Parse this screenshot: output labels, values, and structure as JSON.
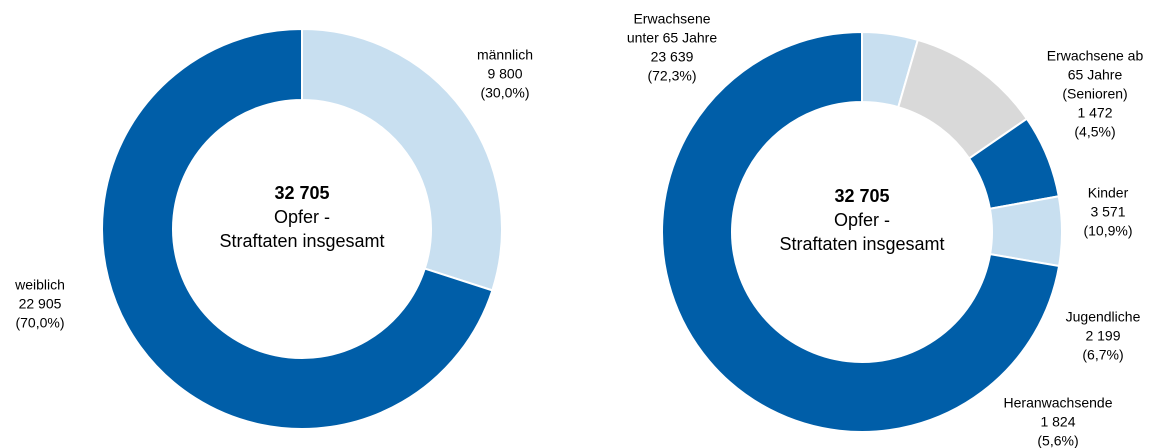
{
  "chart_data": [
    {
      "type": "donut",
      "center_label": [
        "32 705",
        "Opfer -",
        "Straftaten insgesamt"
      ],
      "categories": [
        [
          "männlich"
        ],
        [
          "weiblich"
        ]
      ],
      "values": [
        9800,
        22905
      ],
      "value_labels": [
        "9 800",
        "22 905"
      ],
      "percent_labels": [
        "(30,0%)",
        "(70,0%)"
      ],
      "colors": [
        "#c8dff0",
        "#005ea8"
      ]
    },
    {
      "type": "donut",
      "center_label": [
        "32 705",
        "Opfer -",
        "Straftaten insgesamt"
      ],
      "categories": [
        [
          "Erwachsene ab",
          "65 Jahre",
          "(Senioren)"
        ],
        [
          "Kinder"
        ],
        [
          "Jugendliche"
        ],
        [
          "Heranwachsende"
        ],
        [
          "Erwachsene",
          "unter 65 Jahre"
        ]
      ],
      "values": [
        1472,
        3571,
        2199,
        1824,
        23639
      ],
      "value_labels": [
        "1 472",
        "3 571",
        "2 199",
        "1 824",
        "23 639"
      ],
      "percent_labels": [
        "(4,5%)",
        "(10,9%)",
        "(6,7%)",
        "(5,6%)",
        "(72,3%)"
      ],
      "colors": [
        "#c8dff0",
        "#d9d9d9",
        "#005ea8",
        "#c8dff0",
        "#005ea8"
      ]
    }
  ]
}
